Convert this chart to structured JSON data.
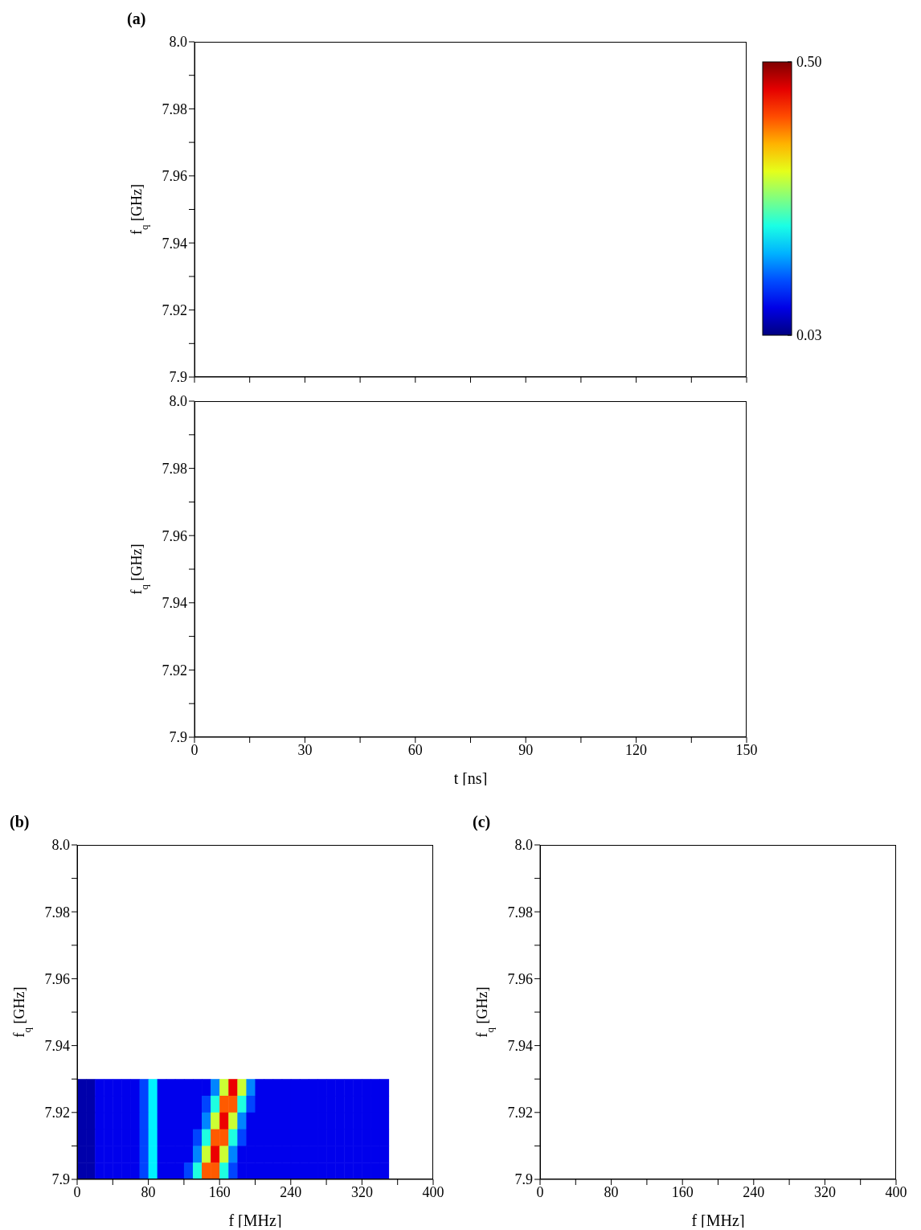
{
  "chart_data": [
    {
      "type": "heatmap",
      "title": "(a)",
      "ylabel": "f$_{q}$ [GHz]",
      "xlim": [
        0,
        150
      ],
      "xticks": [
        0,
        {
          "value": 15,
          "label": null
        },
        30,
        {
          "value": 45,
          "label": null
        },
        60,
        {
          "value": 75,
          "label": null
        },
        90,
        {
          "value": 105,
          "label": null
        },
        120,
        {
          "value": 135,
          "label": null
        },
        150
      ],
      "ylim": [
        7.9,
        8.0
      ],
      "yticks": [
        7.9,
        {
          "value": 7.91,
          "label": null
        },
        7.92,
        {
          "value": 7.93,
          "label": null
        },
        7.94,
        {
          "value": 7.95,
          "label": null
        },
        7.96,
        {
          "value": 7.97,
          "label": null
        },
        7.98,
        {
          "value": 7.99,
          "label": null
        },
        {
          "value": 8.0,
          "label": "8.0"
        }
      ],
      "tick_labels": "y"
    },
    {
      "type": "heatmap",
      "xlabel": "t [ns]",
      "ylabel": "f$_{q}$ [GHz]",
      "xlim": [
        0,
        150
      ],
      "xticks": [
        0,
        {
          "value": 15,
          "label": null
        },
        30,
        {
          "value": 45,
          "label": null
        },
        60,
        {
          "value": 75,
          "label": null
        },
        90,
        {
          "value": 105,
          "label": null
        },
        120,
        {
          "value": 135,
          "label": null
        },
        150
      ],
      "ylim": [
        7.9,
        8.0
      ],
      "yticks": [
        7.9,
        {
          "value": 7.91,
          "label": null
        },
        7.92,
        {
          "value": 7.93,
          "label": null
        },
        7.94,
        {
          "value": 7.95,
          "label": null
        },
        7.96,
        {
          "value": 7.97,
          "label": null
        },
        7.98,
        {
          "value": 7.99,
          "label": null
        },
        {
          "value": 8.0,
          "label": "8.0"
        }
      ]
    },
    {
      "type": "scatter",
      "title": "(b)",
      "xlabel": "f [MHz]",
      "ylabel": "f$_{q}$ [GHz]",
      "marker": "square",
      "xlim": [
        0,
        400
      ],
      "xticks": [
        0,
        {
          "value": 40,
          "label": null
        },
        80,
        {
          "value": 120,
          "label": null
        },
        160,
        {
          "value": 200,
          "label": null
        },
        240,
        {
          "value": 280,
          "label": null
        },
        320,
        {
          "value": 360,
          "label": null
        },
        400
      ],
      "ylim": [
        7.9,
        8.0
      ],
      "yticks": [
        7.9,
        {
          "value": 7.91,
          "label": null
        },
        7.92,
        {
          "value": 7.93,
          "label": null
        },
        7.94,
        {
          "value": 7.95,
          "label": null
        },
        7.96,
        {
          "value": 7.97,
          "label": null
        },
        7.98,
        {
          "value": 7.99,
          "label": null
        },
        {
          "value": 8.0,
          "label": "8.0"
        }
      ],
      "clim": [
        0.03,
        0.5
      ],
      "cticks": [
        {
          "value": 0.5,
          "label": "0.50"
        },
        0.03
      ],
      "x": [
        5,
        15,
        25,
        35,
        45,
        55,
        65,
        75,
        85,
        95,
        105,
        115,
        125,
        135,
        145,
        155,
        165,
        175,
        185,
        195,
        205,
        215,
        225,
        235,
        245,
        255,
        265,
        275,
        285,
        295,
        305,
        315,
        325,
        335,
        345,
        5,
        15,
        25,
        35,
        45,
        55,
        65,
        75,
        85,
        95,
        105,
        115,
        125,
        135,
        145,
        155,
        165,
        175,
        185,
        195,
        205,
        215,
        225,
        235,
        245,
        255,
        265,
        275,
        285,
        295,
        305,
        315,
        325,
        335,
        345,
        5,
        15,
        25,
        35,
        45,
        55,
        65,
        75,
        85,
        95,
        105,
        115,
        125,
        135,
        145,
        155,
        165,
        175,
        185,
        195,
        205,
        215,
        225,
        235,
        245,
        255,
        265,
        275,
        285,
        295,
        305,
        315,
        325,
        335,
        345,
        5,
        15,
        25,
        35,
        45,
        55,
        65,
        75,
        85,
        95,
        105,
        115,
        125,
        135,
        145,
        155,
        165,
        175,
        185,
        195,
        205,
        215,
        225,
        235,
        245,
        255,
        265,
        275,
        285,
        295,
        305,
        315,
        325,
        335,
        345,
        5,
        15,
        25,
        35,
        45,
        55,
        65,
        75,
        85,
        95,
        105,
        115,
        125,
        135,
        145,
        155,
        165,
        175,
        185,
        195,
        205,
        215,
        225,
        235,
        245,
        255,
        265,
        275,
        285,
        295,
        305,
        315,
        325,
        335,
        345,
        5,
        15,
        25,
        35,
        45,
        55,
        65,
        75,
        85,
        95,
        105,
        115,
        125,
        135,
        145,
        155,
        165,
        175,
        185,
        195,
        205,
        215,
        225,
        235,
        245,
        255,
        265,
        275,
        285,
        295,
        305,
        315,
        325,
        335,
        345
      ],
      "values": [
        7.9275,
        7.9275,
        7.9275,
        7.9275,
        7.9275,
        7.9275,
        7.9275,
        7.9275,
        7.9275,
        7.9275,
        7.9275,
        7.9275,
        7.9275,
        7.9275,
        7.9275,
        7.9275,
        7.9275,
        7.9275,
        7.9275,
        7.9275,
        7.9275,
        7.9275,
        7.9275,
        7.9275,
        7.9275,
        7.9275,
        7.9275,
        7.9275,
        7.9275,
        7.9275,
        7.9275,
        7.9275,
        7.9275,
        7.9275,
        7.9275,
        7.9225,
        7.9225,
        7.9225,
        7.9225,
        7.9225,
        7.9225,
        7.9225,
        7.9225,
        7.9225,
        7.9225,
        7.9225,
        7.9225,
        7.9225,
        7.9225,
        7.9225,
        7.9225,
        7.9225,
        7.9225,
        7.9225,
        7.9225,
        7.9225,
        7.9225,
        7.9225,
        7.9225,
        7.9225,
        7.9225,
        7.9225,
        7.9225,
        7.9225,
        7.9225,
        7.9225,
        7.9225,
        7.9225,
        7.9225,
        7.9225,
        7.9175,
        7.9175,
        7.9175,
        7.9175,
        7.9175,
        7.9175,
        7.9175,
        7.9175,
        7.9175,
        7.9175,
        7.9175,
        7.9175,
        7.9175,
        7.9175,
        7.9175,
        7.9175,
        7.9175,
        7.9175,
        7.9175,
        7.9175,
        7.9175,
        7.9175,
        7.9175,
        7.9175,
        7.9175,
        7.9175,
        7.9175,
        7.9175,
        7.9175,
        7.9175,
        7.9175,
        7.9175,
        7.9175,
        7.9175,
        7.9175,
        7.9125,
        7.9125,
        7.9125,
        7.9125,
        7.9125,
        7.9125,
        7.9125,
        7.9125,
        7.9125,
        7.9125,
        7.9125,
        7.9125,
        7.9125,
        7.9125,
        7.9125,
        7.9125,
        7.9125,
        7.9125,
        7.9125,
        7.9125,
        7.9125,
        7.9125,
        7.9125,
        7.9125,
        7.9125,
        7.9125,
        7.9125,
        7.9125,
        7.9125,
        7.9125,
        7.9125,
        7.9125,
        7.9125,
        7.9125,
        7.9125,
        7.9075,
        7.9075,
        7.9075,
        7.9075,
        7.9075,
        7.9075,
        7.9075,
        7.9075,
        7.9075,
        7.9075,
        7.9075,
        7.9075,
        7.9075,
        7.9075,
        7.9075,
        7.9075,
        7.9075,
        7.9075,
        7.9075,
        7.9075,
        7.9075,
        7.9075,
        7.9075,
        7.9075,
        7.9075,
        7.9075,
        7.9075,
        7.9075,
        7.9075,
        7.9075,
        7.9075,
        7.9075,
        7.9075,
        7.9075,
        7.9075,
        7.9025,
        7.9025,
        7.9025,
        7.9025,
        7.9025,
        7.9025,
        7.9025,
        7.9025,
        7.9025,
        7.9025,
        7.9025,
        7.9025,
        7.9025,
        7.9025,
        7.9025,
        7.9025,
        7.9025,
        7.9025,
        7.9025,
        7.9025,
        7.9025,
        7.9025,
        7.9025,
        7.9025,
        7.9025,
        7.9025,
        7.9025,
        7.9025,
        7.9025,
        7.9025,
        7.9025,
        7.9025,
        7.9025,
        7.9025,
        7.9025
      ],
      "cvalues": [
        0.05,
        0.05,
        0.08,
        0.08,
        0.08,
        0.08,
        0.08,
        0.12,
        0.2,
        0.08,
        0.08,
        0.08,
        0.08,
        0.08,
        0.08,
        0.15,
        0.3,
        0.45,
        0.3,
        0.15,
        0.08,
        0.08,
        0.08,
        0.08,
        0.08,
        0.08,
        0.08,
        0.08,
        0.08,
        0.08,
        0.08,
        0.08,
        0.08,
        0.08,
        0.08,
        0.05,
        0.05,
        0.08,
        0.08,
        0.08,
        0.08,
        0.08,
        0.12,
        0.2,
        0.08,
        0.08,
        0.08,
        0.08,
        0.08,
        0.12,
        0.22,
        0.4,
        0.4,
        0.22,
        0.12,
        0.08,
        0.08,
        0.08,
        0.08,
        0.08,
        0.08,
        0.08,
        0.08,
        0.08,
        0.08,
        0.08,
        0.08,
        0.08,
        0.08,
        0.08,
        0.05,
        0.05,
        0.08,
        0.08,
        0.08,
        0.08,
        0.08,
        0.12,
        0.2,
        0.08,
        0.08,
        0.08,
        0.08,
        0.08,
        0.15,
        0.3,
        0.45,
        0.3,
        0.15,
        0.08,
        0.08,
        0.08,
        0.08,
        0.08,
        0.08,
        0.08,
        0.08,
        0.08,
        0.08,
        0.08,
        0.08,
        0.08,
        0.08,
        0.08,
        0.08,
        0.05,
        0.05,
        0.08,
        0.08,
        0.08,
        0.08,
        0.08,
        0.12,
        0.2,
        0.08,
        0.08,
        0.08,
        0.08,
        0.12,
        0.22,
        0.4,
        0.4,
        0.22,
        0.12,
        0.08,
        0.08,
        0.08,
        0.08,
        0.08,
        0.08,
        0.08,
        0.08,
        0.08,
        0.08,
        0.08,
        0.08,
        0.08,
        0.08,
        0.08,
        0.08,
        0.05,
        0.05,
        0.08,
        0.08,
        0.08,
        0.08,
        0.08,
        0.12,
        0.2,
        0.08,
        0.08,
        0.08,
        0.08,
        0.15,
        0.3,
        0.45,
        0.3,
        0.15,
        0.08,
        0.08,
        0.08,
        0.08,
        0.08,
        0.08,
        0.08,
        0.08,
        0.08,
        0.08,
        0.08,
        0.08,
        0.08,
        0.08,
        0.08,
        0.08,
        0.08,
        0.05,
        0.05,
        0.08,
        0.08,
        0.08,
        0.08,
        0.08,
        0.12,
        0.2,
        0.08,
        0.08,
        0.08,
        0.12,
        0.22,
        0.4,
        0.4,
        0.22,
        0.12,
        0.08,
        0.08,
        0.08,
        0.08,
        0.08,
        0.08,
        0.08,
        0.08,
        0.08,
        0.08,
        0.08,
        0.08,
        0.08,
        0.08,
        0.08,
        0.08,
        0.08
      ]
    },
    {
      "type": "heatmap",
      "title": "(c)",
      "xlabel": "f [MHz]",
      "ylabel": "f$_{q}$ [GHz]",
      "xlim": [
        0,
        400
      ],
      "xticks": [
        0,
        {
          "value": 40,
          "label": null
        },
        80,
        {
          "value": 120,
          "label": null
        },
        160,
        {
          "value": 200,
          "label": null
        },
        240,
        {
          "value": 280,
          "label": null
        },
        320,
        {
          "value": 360,
          "label": null
        },
        400
      ],
      "ylim": [
        7.9,
        8.0
      ],
      "yticks": [
        7.9,
        {
          "value": 7.91,
          "label": null
        },
        7.92,
        {
          "value": 7.93,
          "label": null
        },
        7.94,
        {
          "value": 7.95,
          "label": null
        },
        7.96,
        {
          "value": 7.97,
          "label": null
        },
        7.98,
        {
          "value": 7.99,
          "label": null
        },
        {
          "value": 8.0,
          "label": "8.0"
        }
      ]
    }
  ]
}
